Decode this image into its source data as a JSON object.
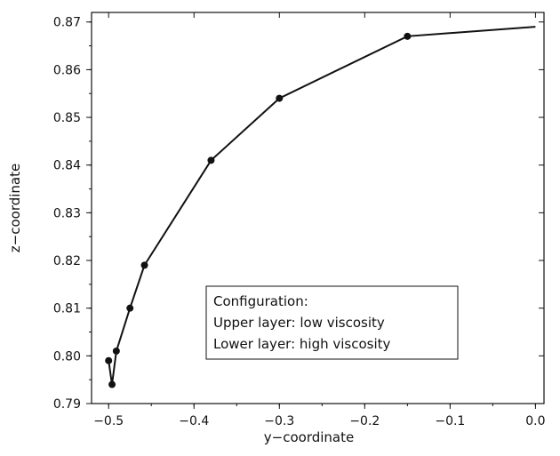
{
  "chart_data": {
    "type": "line",
    "xlabel": "y−coordinate",
    "ylabel": "z−coordinate",
    "xlim": [
      -0.52,
      0.01
    ],
    "ylim": [
      0.79,
      0.872
    ],
    "x_ticks": [
      -0.5,
      -0.4,
      -0.3,
      -0.2,
      -0.1,
      0.0
    ],
    "x_tick_labels": [
      "−0.5",
      "−0.4",
      "−0.3",
      "−0.2",
      "−0.1",
      "0.0"
    ],
    "y_ticks": [
      0.79,
      0.8,
      0.81,
      0.82,
      0.83,
      0.84,
      0.85,
      0.86,
      0.87
    ],
    "y_tick_labels": [
      "0.79",
      "0.80",
      "0.81",
      "0.82",
      "0.83",
      "0.84",
      "0.85",
      "0.86",
      "0.87"
    ],
    "grid": false,
    "legend_position": "lower-right",
    "annotation_lines": [
      "Configuration:",
      "Upper layer: low viscosity",
      "Lower layer: high viscosity"
    ],
    "series": [
      {
        "x": [
          -0.5,
          -0.496,
          -0.491,
          -0.475,
          -0.458,
          -0.38,
          -0.3,
          -0.15,
          -0.0
        ],
        "y": [
          0.799,
          0.794,
          0.801,
          0.81,
          0.819,
          0.841,
          0.854,
          0.867,
          0.869
        ],
        "markers": [
          true,
          true,
          true,
          true,
          true,
          true,
          true,
          true,
          false
        ]
      }
    ],
    "colors": {
      "line": "#111111",
      "axis": "#111111"
    }
  }
}
